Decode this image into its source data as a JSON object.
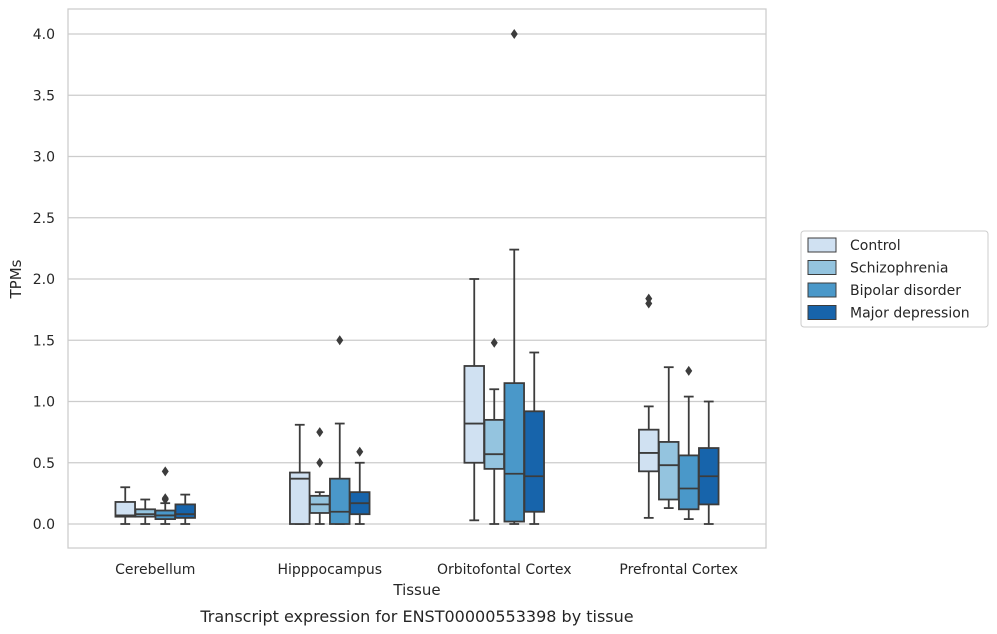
{
  "chart_data": {
    "type": "box",
    "xlabel": "Tissue",
    "ylabel": "TPMs",
    "caption": "Transcript expression for ENST00000553398 by tissue",
    "ylim": [
      -0.19,
      4.2
    ],
    "yticks": [
      "0.0",
      "0.5",
      "1.0",
      "1.5",
      "2.0",
      "2.5",
      "3.0",
      "3.5",
      "4.0"
    ],
    "grid": "horizontal",
    "legend_position": "right",
    "categories": [
      "Cerebellum",
      "Hipppocampus",
      "Orbitofontal Cortex",
      "Prefrontal Cortex"
    ],
    "series": [
      {
        "name": "Control",
        "color": "#d0e1f2",
        "boxes": [
          {
            "whisker_low": 0.0,
            "q1": 0.06,
            "median": 0.07,
            "q3": 0.18,
            "whisker_high": 0.3,
            "outliers": []
          },
          {
            "whisker_low": 0.0,
            "q1": 0.0,
            "median": 0.37,
            "q3": 0.42,
            "whisker_high": 0.81,
            "outliers": []
          },
          {
            "whisker_low": 0.03,
            "q1": 0.5,
            "median": 0.82,
            "q3": 1.29,
            "whisker_high": 2.0,
            "outliers": []
          },
          {
            "whisker_low": 0.05,
            "q1": 0.43,
            "median": 0.58,
            "q3": 0.77,
            "whisker_high": 0.96,
            "outliers": [
              1.84,
              1.8
            ]
          }
        ]
      },
      {
        "name": "Schizophrenia",
        "color": "#94c4df",
        "boxes": [
          {
            "whisker_low": 0.0,
            "q1": 0.06,
            "median": 0.08,
            "q3": 0.12,
            "whisker_high": 0.2,
            "outliers": []
          },
          {
            "whisker_low": 0.0,
            "q1": 0.09,
            "median": 0.16,
            "q3": 0.23,
            "whisker_high": 0.26,
            "outliers": [
              0.75,
              0.5
            ]
          },
          {
            "whisker_low": 0.0,
            "q1": 0.45,
            "median": 0.57,
            "q3": 0.85,
            "whisker_high": 1.1,
            "outliers": [
              1.48
            ]
          },
          {
            "whisker_low": 0.13,
            "q1": 0.2,
            "median": 0.48,
            "q3": 0.67,
            "whisker_high": 1.28,
            "outliers": []
          }
        ]
      },
      {
        "name": "Bipolar disorder",
        "color": "#4a98c9",
        "boxes": [
          {
            "whisker_low": 0.0,
            "q1": 0.04,
            "median": 0.07,
            "q3": 0.11,
            "whisker_high": 0.17,
            "outliers": [
              0.43,
              0.21,
              0.2
            ]
          },
          {
            "whisker_low": 0.0,
            "q1": 0.0,
            "median": 0.1,
            "q3": 0.37,
            "whisker_high": 0.82,
            "outliers": [
              1.5
            ]
          },
          {
            "whisker_low": 0.0,
            "q1": 0.02,
            "median": 0.41,
            "q3": 1.15,
            "whisker_high": 2.24,
            "outliers": [
              4.0
            ]
          },
          {
            "whisker_low": 0.04,
            "q1": 0.12,
            "median": 0.29,
            "q3": 0.56,
            "whisker_high": 1.04,
            "outliers": [
              1.25
            ]
          }
        ]
      },
      {
        "name": "Major depression",
        "color": "#1764ab",
        "boxes": [
          {
            "whisker_low": 0.0,
            "q1": 0.05,
            "median": 0.08,
            "q3": 0.16,
            "whisker_high": 0.24,
            "outliers": []
          },
          {
            "whisker_low": 0.0,
            "q1": 0.08,
            "median": 0.17,
            "q3": 0.26,
            "whisker_high": 0.5,
            "outliers": [
              0.59
            ]
          },
          {
            "whisker_low": 0.0,
            "q1": 0.1,
            "median": 0.39,
            "q3": 0.92,
            "whisker_high": 1.4,
            "outliers": []
          },
          {
            "whisker_low": 0.0,
            "q1": 0.16,
            "median": 0.39,
            "q3": 0.62,
            "whisker_high": 1.0,
            "outliers": []
          }
        ]
      }
    ]
  }
}
